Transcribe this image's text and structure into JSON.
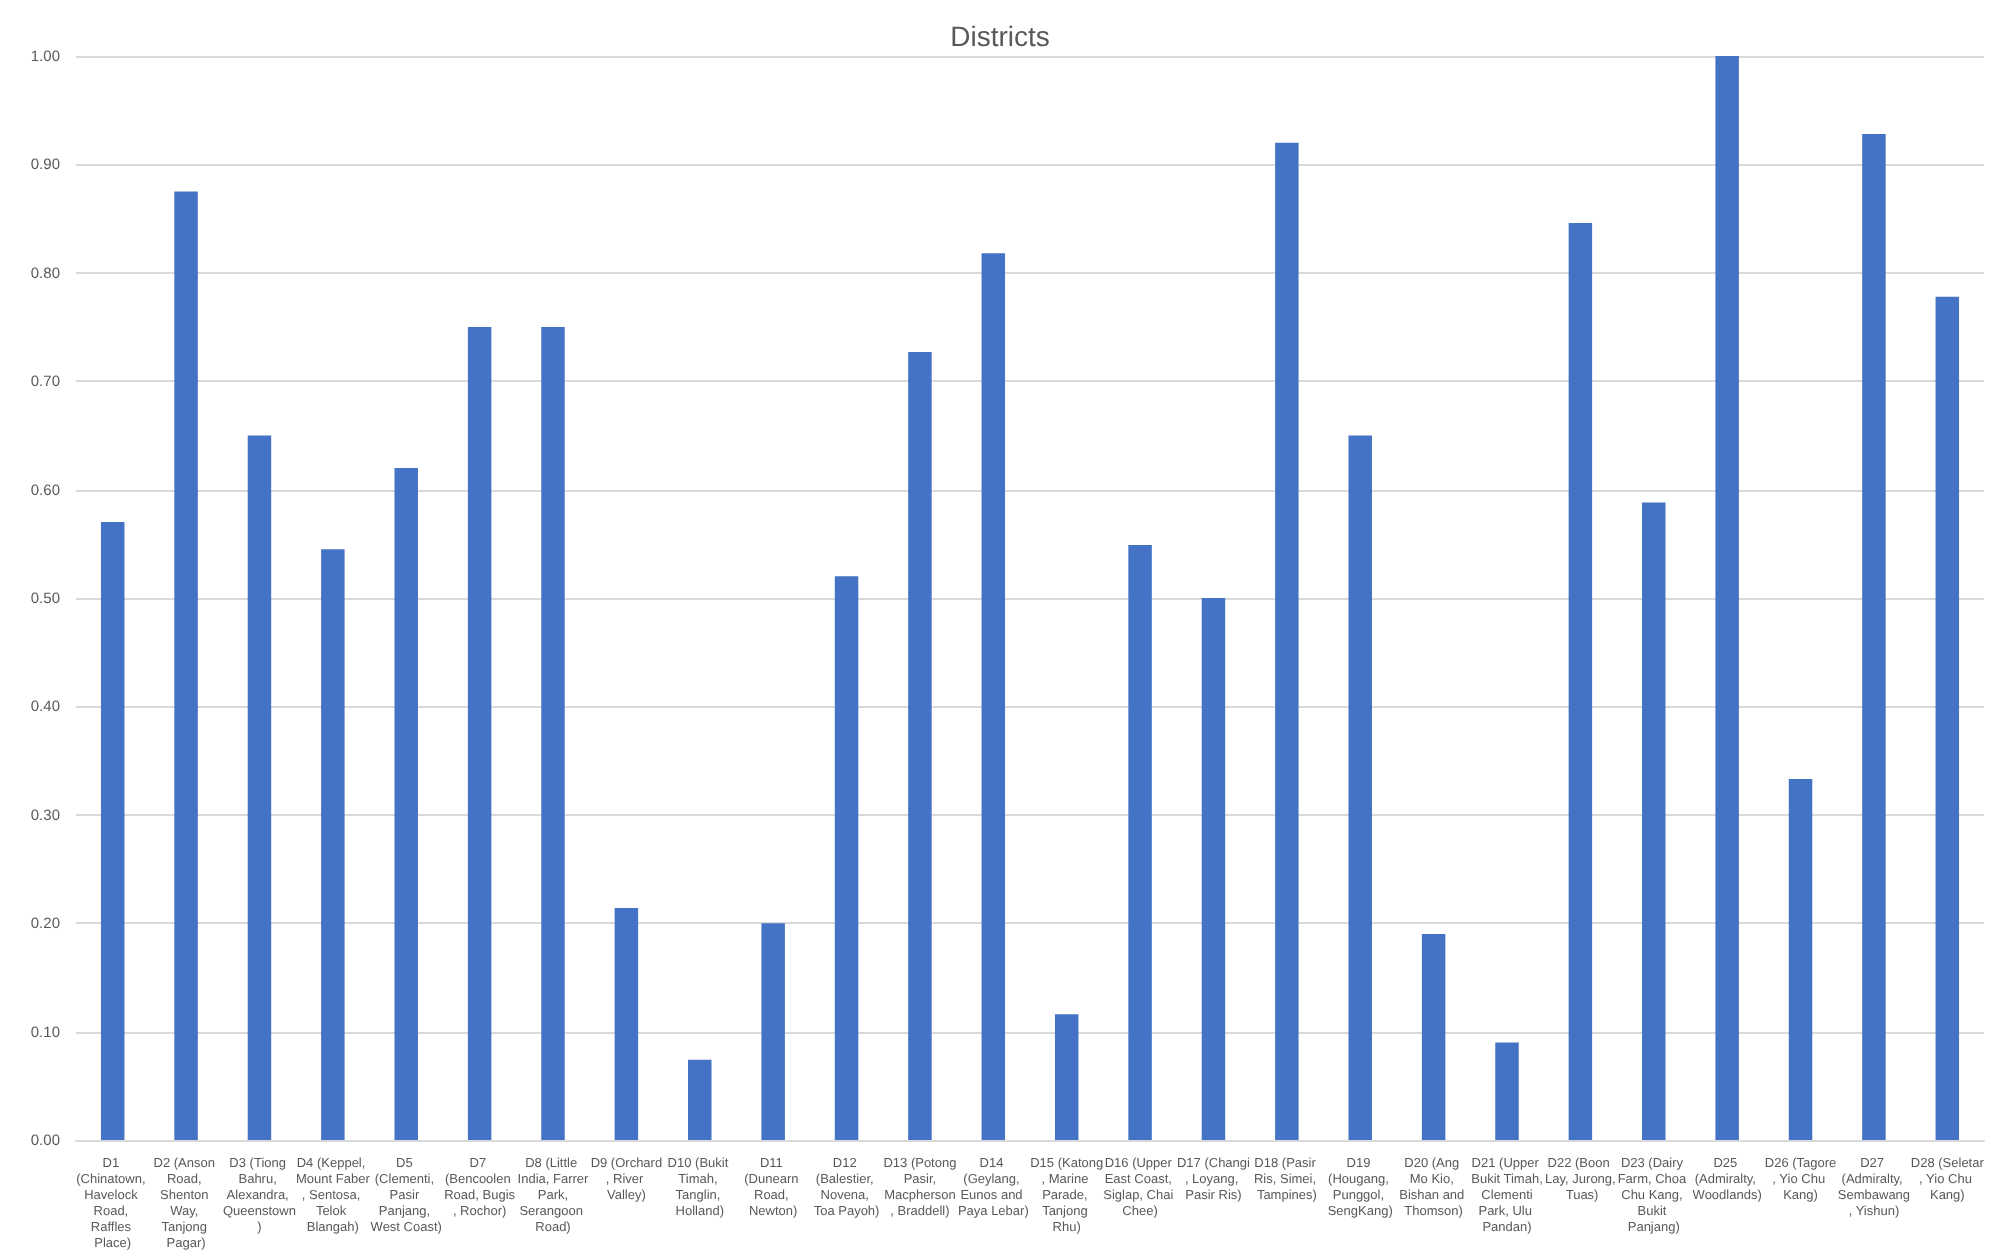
{
  "chart_data": {
    "type": "bar",
    "title": "Districts",
    "categories": [
      "D1 (Chinatown, Havelock Road, Raffles Place)",
      "D2 (Anson Road, Shenton Way, Tanjong Pagar)",
      "D3 (Tiong Bahru, Alexandra, Queenstown)",
      "D4 (Keppel, Mount Faber, Sentosa, Telok Blangah)",
      "D5 (Clementi, Pasir Panjang, West Coast)",
      "D7 (Bencoolen Road, Bugis, Rochor)",
      "D8 (Little India, Farrer Park, Serangoon Road)",
      "D9 (Orchard, River Valley)",
      "D10 (Bukit Timah, Tanglin, Holland)",
      "D11 (Dunearn Road, Newton)",
      "D12 (Balestier, Novena, Toa Payoh)",
      "D13 (Potong Pasir, Macpherson, Braddell)",
      "D14 (Geylang, Eunos and Paya Lebar)",
      "D15 (Katong, Marine Parade, Tanjong Rhu)",
      "D16 (Upper East Coast, Siglap, Chai Chee)",
      "D17 (Changi, Loyang, Pasir Ris)",
      "D18 (Pasir Ris, Simei, Tampines)",
      "D19 (Hougang, Punggol, SengKang)",
      "D20 (Ang Mo Kio, Bishan and Thomson)",
      "D21 (Upper Bukit Timah, Clementi Park, Ulu Pandan)",
      "D22 (Boon Lay, Jurong, Tuas)",
      "D23 (Dairy Farm, Choa Chu Kang, Bukit Panjang)",
      "D25 (Admiralty, Woodlands)",
      "D26 (Tagore, Yio Chu Kang)",
      "D27 (Admiralty, Sembawang, Yishun)",
      "D28 (Seletar, Yio Chu Kang)"
    ],
    "values": [
      0.57,
      0.875,
      0.65,
      0.545,
      0.62,
      0.75,
      0.75,
      0.214,
      0.074,
      0.2,
      0.52,
      0.727,
      0.818,
      0.116,
      0.549,
      0.5,
      0.92,
      0.65,
      0.19,
      0.09,
      0.846,
      0.588,
      1.0,
      0.333,
      0.928,
      0.778
    ],
    "color": "#4472c4",
    "ylim": [
      0,
      1
    ],
    "yticks": [
      {
        "value": 0,
        "label": "0.00"
      },
      {
        "value": 0.1,
        "label": "0.10"
      },
      {
        "value": 0.2,
        "label": "0.20"
      },
      {
        "value": 0.3,
        "label": "0.30"
      },
      {
        "value": 0.4,
        "label": "0.40"
      },
      {
        "value": 0.5,
        "label": "0.50"
      },
      {
        "value": 0.6,
        "label": "0.60"
      },
      {
        "value": 0.7,
        "label": "0.70"
      },
      {
        "value": 0.8,
        "label": "0.80"
      },
      {
        "value": 0.9,
        "label": "0.90"
      },
      {
        "value": 1,
        "label": "1.00"
      }
    ],
    "grid": "y"
  }
}
